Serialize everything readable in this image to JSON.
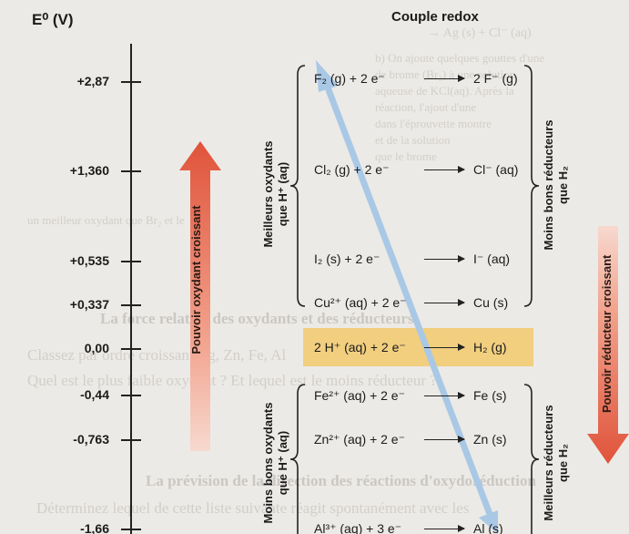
{
  "header": {
    "potential_label": "E⁰ (V)",
    "couple_title": "Couple redox"
  },
  "potentials": [
    "+2,87",
    "+1,360",
    "+0,535",
    "+0,337",
    "0,00",
    "-0,44",
    "-0,763",
    "-1,66"
  ],
  "reactions": [
    {
      "ox": "F₂ (g) + 2 e⁻",
      "red": "2 F⁻ (g)"
    },
    {
      "ox": "Cl₂ (g) + 2 e⁻",
      "red": "Cl⁻ (aq)"
    },
    {
      "ox": "I₂ (s) + 2 e⁻",
      "red": "I⁻ (aq)"
    },
    {
      "ox": "Cu²⁺ (aq) + 2 e⁻",
      "red": "Cu (s)"
    },
    {
      "ox": "2 H⁺ (aq) + 2 e⁻",
      "red": "H₂ (g)"
    },
    {
      "ox": "Fe²⁺ (aq) + 2 e⁻",
      "red": "Fe (s)"
    },
    {
      "ox": "Zn²⁺ (aq) + 2 e⁻",
      "red": "Zn (s)"
    },
    {
      "ox": "Al³⁺ (aq) + 3 e⁻",
      "red": "Al (s)"
    }
  ],
  "side_labels": {
    "better_oxidants": [
      "Meilleurs oxydants",
      "que H⁺ (aq)"
    ],
    "weaker_reducers": [
      "Moins bons réducteurs",
      "que H₂"
    ],
    "weaker_oxidants": [
      "Moins bons oxydants",
      "que H⁺ (aq)"
    ],
    "better_reducers": [
      "Meilleurs réducteurs",
      "que H₂"
    ]
  },
  "arrows": {
    "oxidant": "Pouvoir oxydant croissant",
    "reducer": "Pouvoir réducteur croissant",
    "oxidant_color": "#e0533a",
    "reducer_color": "#e0533a",
    "diagonal_color": "#a9c8e6"
  },
  "background_text": [
    "→ Ag (s) + Cl⁻ (aq)",
    "b) On ajoute quelques gouttes d'une",
    "de brome (Br₂) à une solution",
    "aqueuse de KCl(aq). Après la",
    "réaction, l'ajout d'une",
    "dans l'éprouvette montre",
    "et de la solution",
    "que le brome",
    "un meilleur oxydant que Br₂ et le",
    "La force relative des oxydants et des réducteurs",
    "Classez par ordre croissant Ag, Zn, Fe, Al",
    "Quel est le plus faible oxydant ? Et lequel est le moins réducteur ?",
    "La prévision de la direction des réactions d'oxydoréduction",
    "Déterminez lequel de cette liste suivante réagit spontanément avec les"
  ]
}
